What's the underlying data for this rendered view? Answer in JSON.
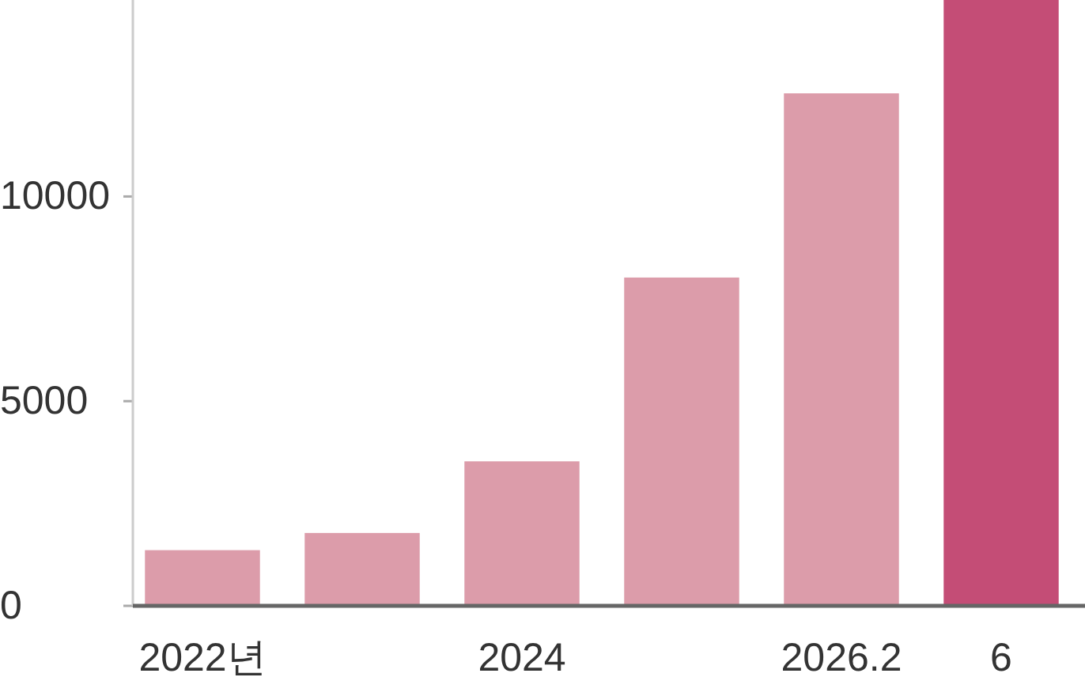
{
  "chart_data": {
    "type": "bar",
    "categories": [
      "2022년",
      null,
      "2024",
      null,
      "2026.2",
      "6"
    ],
    "values": [
      1360,
      1780,
      3530,
      8020,
      12520,
      14800
    ],
    "colors": [
      "#dc9caa",
      "#dc9caa",
      "#dc9caa",
      "#dc9caa",
      "#dc9caa",
      "#c44d76"
    ],
    "ylim": [
      0,
      14800
    ],
    "yticks": [
      0,
      5000,
      10000
    ],
    "grid": false
  }
}
